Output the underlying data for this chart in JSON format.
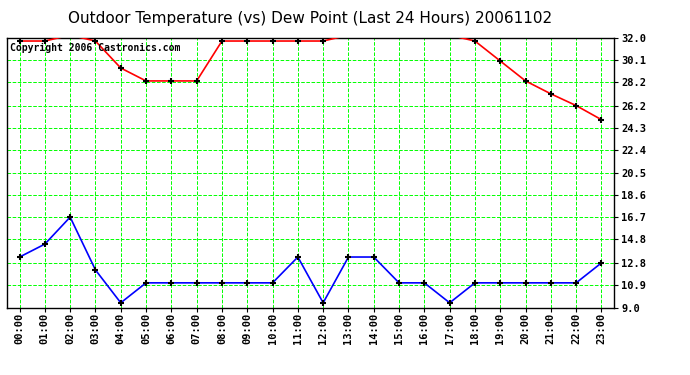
{
  "title": "Outdoor Temperature (vs) Dew Point (Last 24 Hours) 20061102",
  "copyright": "Copyright 2006 Castronics.com",
  "x_labels": [
    "00:00",
    "01:00",
    "02:00",
    "03:00",
    "04:00",
    "05:00",
    "06:00",
    "07:00",
    "08:00",
    "09:00",
    "10:00",
    "11:00",
    "12:00",
    "13:00",
    "14:00",
    "15:00",
    "16:00",
    "17:00",
    "18:00",
    "19:00",
    "20:00",
    "21:00",
    "22:00",
    "23:00"
  ],
  "temp_data": [
    31.7,
    31.7,
    32.2,
    31.7,
    29.4,
    28.3,
    28.3,
    28.3,
    31.7,
    31.7,
    31.7,
    31.7,
    31.7,
    32.2,
    32.2,
    32.2,
    32.2,
    32.2,
    31.7,
    30.0,
    28.3,
    27.2,
    26.2,
    25.0
  ],
  "dew_data": [
    13.3,
    14.4,
    16.7,
    12.2,
    9.4,
    11.1,
    11.1,
    11.1,
    11.1,
    11.1,
    11.1,
    13.3,
    9.4,
    13.3,
    13.3,
    11.1,
    11.1,
    9.4,
    11.1,
    11.1,
    11.1,
    11.1,
    11.1,
    12.8
  ],
  "temp_color": "#ff0000",
  "dew_color": "#0000ff",
  "bg_color": "#ffffff",
  "plot_bg": "#ffffff",
  "grid_color": "#00ff00",
  "border_color": "#000000",
  "yticks": [
    9.0,
    10.9,
    12.8,
    14.8,
    16.7,
    18.6,
    20.5,
    22.4,
    24.3,
    26.2,
    28.2,
    30.1,
    32.0
  ],
  "ymin": 9.0,
  "ymax": 32.0,
  "title_fontsize": 11,
  "label_fontsize": 7.5,
  "copyright_fontsize": 7
}
